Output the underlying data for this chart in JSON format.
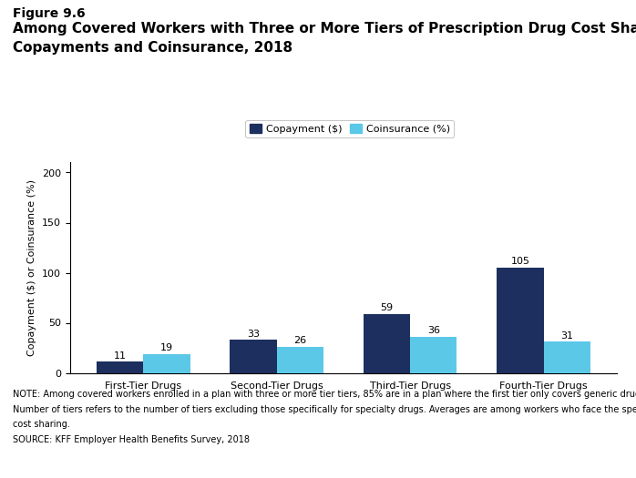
{
  "figure_label": "Figure 9.6",
  "title_line1": "Among Covered Workers with Three or More Tiers of Prescription Drug Cost Sharing, Average",
  "title_line2": "Copayments and Coinsurance, 2018",
  "categories": [
    "First-Tier Drugs",
    "Second-Tier Drugs",
    "Third-Tier Drugs",
    "Fourth-Tier Drugs"
  ],
  "copayment_values": [
    11,
    33,
    59,
    105
  ],
  "coinsurance_values": [
    19,
    26,
    36,
    31
  ],
  "copayment_color": "#1c2f5e",
  "coinsurance_color": "#5bc8e8",
  "ylabel": "Copayment ($) or Coinsurance (%)",
  "ylim": [
    0,
    210
  ],
  "yticks": [
    0,
    50,
    100,
    150,
    200
  ],
  "legend_labels": [
    "Copayment ($)",
    "Coinsurance (%)"
  ],
  "bar_width": 0.35,
  "note_line1": "NOTE: Among covered workers enrolled in a plan with three or more tier tiers, 85% are in a plan where the first tier only covers generic drugs.",
  "note_line2": "Number of tiers refers to the number of tiers excluding those specifically for specialty drugs. Averages are among workers who face the specified",
  "note_line3": "cost sharing.",
  "source": "SOURCE: KFF Employer Health Benefits Survey, 2018",
  "background_color": "#ffffff",
  "bar_label_fontsize": 8,
  "tick_fontsize": 8,
  "note_fontsize": 7,
  "ylabel_fontsize": 8,
  "title_fontsize": 11,
  "figure_label_fontsize": 10
}
